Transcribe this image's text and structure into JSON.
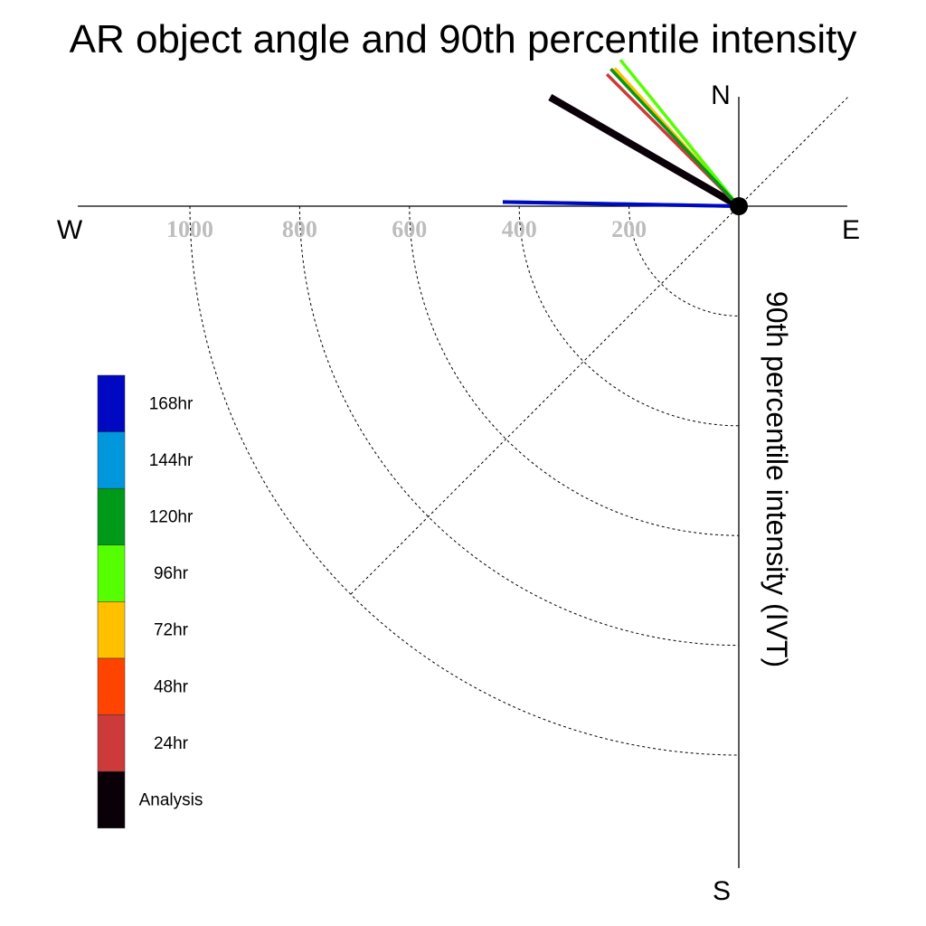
{
  "chart_data": {
    "type": "polar-vector",
    "title": "AR object angle and 90th percentile intensity",
    "ylabel": "90th percentile intensity (IVT)",
    "compass": {
      "north": "N",
      "south": "S",
      "east": "E",
      "west": "W"
    },
    "radial_ticks": [
      "1000",
      "800",
      "600",
      "400",
      "200"
    ],
    "radial_tick_values": [
      1000,
      800,
      600,
      400,
      200
    ],
    "radial_range": [
      0,
      1150
    ],
    "legend": [
      "168hr",
      "144hr",
      "120hr",
      "96hr",
      "72hr",
      "48hr",
      "24hr",
      "Analysis"
    ],
    "series": [
      {
        "name": "Analysis",
        "color": "#0a0008",
        "angle_deg": 300,
        "intensity": 397
      },
      {
        "name": "24hr",
        "color": "#cc3a3a",
        "angle_deg": 315,
        "intensity": 340
      },
      {
        "name": "48hr",
        "color": "#ff4400",
        "angle_deg": 317,
        "intensity": 342
      },
      {
        "name": "72hr",
        "color": "#ffc000",
        "angle_deg": 318,
        "intensity": 338
      },
      {
        "name": "96hr",
        "color": "#55ff00",
        "angle_deg": 321,
        "intensity": 343
      },
      {
        "name": "120hr",
        "color": "#009a1a",
        "angle_deg": 317,
        "intensity": 341
      },
      {
        "name": "144hr",
        "color": "#0097dd",
        "angle_deg": 271,
        "intensity": 430
      },
      {
        "name": "168hr",
        "color": "#0008c2",
        "angle_deg": 271,
        "intensity": 430
      }
    ],
    "colors": {
      "168hr": "#0008c2",
      "144hr": "#0097dd",
      "120hr": "#009a1a",
      "96hr": "#55ff00",
      "72hr": "#ffc000",
      "48hr": "#ff4400",
      "24hr": "#cc3a3a",
      "Analysis": "#0a0008"
    }
  }
}
